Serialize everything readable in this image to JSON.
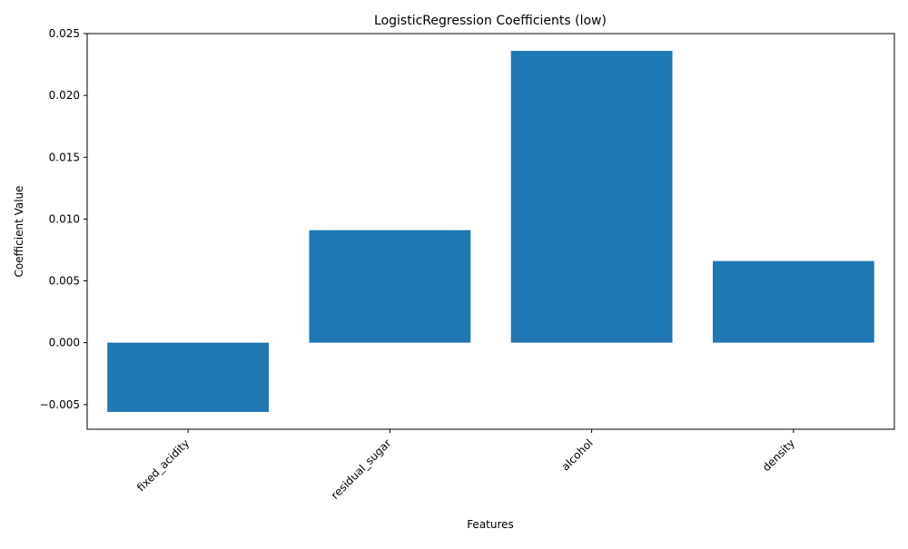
{
  "chart_data": {
    "type": "bar",
    "title": "LogisticRegression Coefficients (low)",
    "xlabel": "Features",
    "ylabel": "Coefficient Value",
    "categories": [
      "fixed_acidity",
      "residual_sugar",
      "alcohol",
      "density"
    ],
    "values": [
      -0.0056,
      0.0091,
      0.0236,
      0.0066
    ],
    "ylim": [
      -0.007,
      0.025
    ],
    "yticks": [
      -0.005,
      0.0,
      0.005,
      0.01,
      0.015,
      0.02,
      0.025
    ],
    "ytick_labels": [
      "−0.005",
      "0.000",
      "0.005",
      "0.010",
      "0.015",
      "0.020",
      "0.025"
    ],
    "bar_color": "#1f77b4",
    "grid": false,
    "legend": "none"
  }
}
